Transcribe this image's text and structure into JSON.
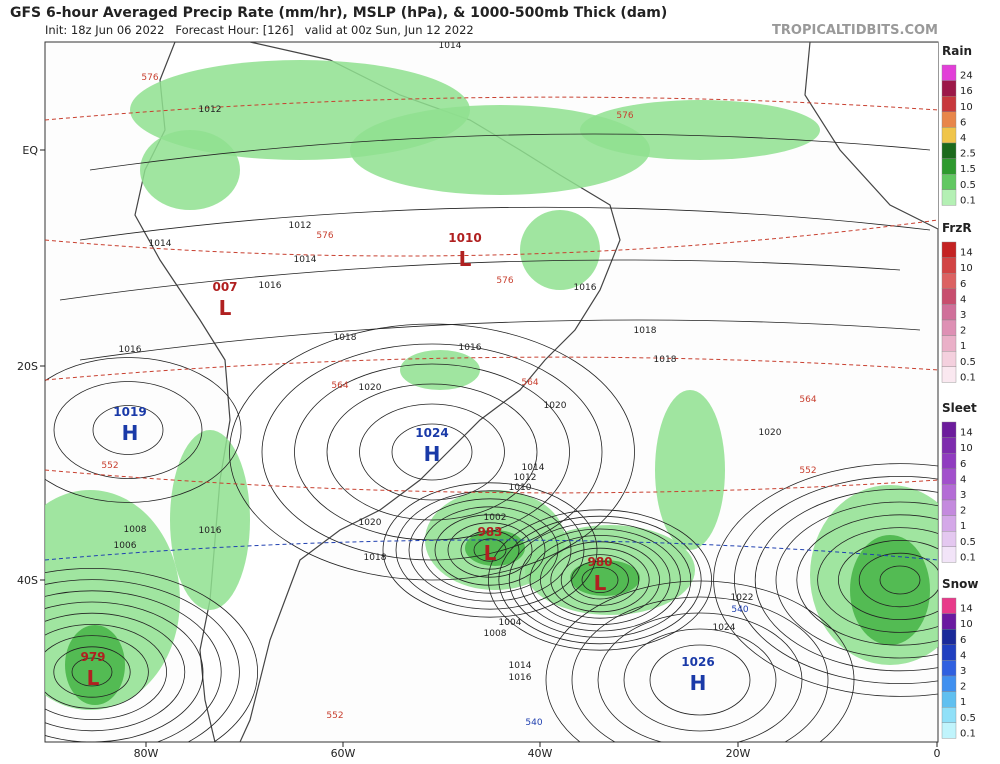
{
  "header": {
    "title": "GFS 6-hour Averaged Precip Rate (mm/hr), MSLP (hPa), & 1000-500mb Thick (dam)",
    "subtitle": "Init: 18z Jun 06 2022   Forecast Hour: [126]   valid at 00z Sun, Jun 12 2022",
    "site": "TROPICALTIDBITS.COM"
  },
  "axes": {
    "lat_labels": [
      "EQ",
      "20S",
      "40S"
    ],
    "lon_labels": [
      "80W",
      "60W",
      "40W",
      "20W",
      "0"
    ]
  },
  "legend": [
    {
      "title": "Rain",
      "ticks": [
        "24",
        "16",
        "10",
        "6",
        "4",
        "2.5",
        "1.5",
        "0.5",
        "0.1"
      ],
      "colors": [
        "#e23fd8",
        "#9c1848",
        "#c8383c",
        "#e8864a",
        "#f0c54a",
        "#1c6a1c",
        "#2e9a2e",
        "#62c862",
        "#b4f0b4"
      ]
    },
    {
      "title": "FrzR",
      "ticks": [
        "14",
        "10",
        "6",
        "4",
        "3",
        "2",
        "1",
        "0.5",
        "0.1"
      ],
      "colors": [
        "#c42222",
        "#d24444",
        "#dc6262",
        "#c84e6e",
        "#d0709a",
        "#de90b4",
        "#eab0c8",
        "#f4d0de",
        "#fae8f0"
      ]
    },
    {
      "title": "Sleet",
      "ticks": [
        "14",
        "10",
        "6",
        "4",
        "3",
        "2",
        "1",
        "0.5",
        "0.1"
      ],
      "colors": [
        "#6c1c9c",
        "#7e2cae",
        "#903cc0",
        "#a250cc",
        "#b46cd6",
        "#c48ade",
        "#d4a8e8",
        "#e4c8f0",
        "#f2e4f8"
      ]
    },
    {
      "title": "Snow",
      "ticks": [
        "14",
        "10",
        "6",
        "4",
        "3",
        "2",
        "1",
        "0.5",
        "0.1"
      ],
      "colors": [
        "#e83a8a",
        "#6a1aa0",
        "#1a2a9a",
        "#2040c0",
        "#3060e0",
        "#4090f0",
        "#60c0f0",
        "#90e0f8",
        "#c0f4fc"
      ]
    }
  ],
  "pressure_centers": [
    {
      "symbol": "H",
      "value": "1019",
      "color": "#1a3aa8"
    },
    {
      "symbol": "H",
      "value": "1024",
      "color": "#1a3aa8"
    },
    {
      "symbol": "H",
      "value": "1026",
      "color": "#1a3aa8"
    },
    {
      "symbol": "L",
      "value": "1010",
      "color": "#b02020"
    },
    {
      "symbol": "L",
      "value": "007",
      "color": "#b02020"
    },
    {
      "symbol": "L",
      "value": "983",
      "color": "#b02020"
    },
    {
      "symbol": "L",
      "value": "980",
      "color": "#b02020"
    },
    {
      "symbol": "L",
      "value": "979",
      "color": "#b02020"
    }
  ],
  "isobar_labels": [
    "1014",
    "1012",
    "1014",
    "1016",
    "1016",
    "1018",
    "1020",
    "1016",
    "1018",
    "1012",
    "1014",
    "1016",
    "1018",
    "1020",
    "1008",
    "1004",
    "1002",
    "1014",
    "1016",
    "1022",
    "1024",
    "1014",
    "1012",
    "1010",
    "1008",
    "1006",
    "1016",
    "1018",
    "1020",
    "1020"
  ],
  "thickness_labels": [
    "576",
    "576",
    "576",
    "576",
    "564",
    "564",
    "564",
    "552",
    "552",
    "552",
    "540",
    "540"
  ]
}
